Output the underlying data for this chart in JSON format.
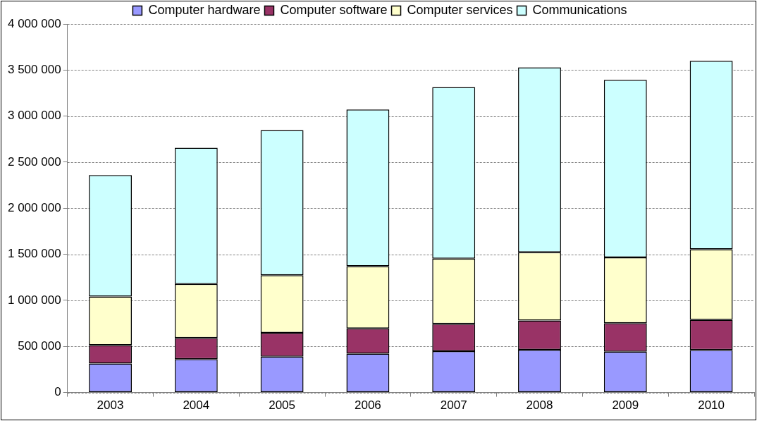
{
  "chart_data": {
    "type": "bar",
    "stacked": true,
    "categories": [
      "2003",
      "2004",
      "2005",
      "2006",
      "2007",
      "2008",
      "2009",
      "2010"
    ],
    "series": [
      {
        "name": "Computer hardware",
        "color": "#9999ff",
        "values": [
          314000,
          362000,
          390000,
          422000,
          448000,
          464000,
          442000,
          462000
        ]
      },
      {
        "name": "Computer software",
        "color": "#993366",
        "values": [
          200000,
          230000,
          258000,
          274000,
          298000,
          318000,
          310000,
          328000
        ]
      },
      {
        "name": "Computer services",
        "color": "#ffffcc",
        "values": [
          528000,
          586000,
          626000,
          674000,
          708000,
          740000,
          714000,
          764000
        ]
      },
      {
        "name": "Communications",
        "color": "#ccffff",
        "values": [
          1318000,
          1478000,
          1574000,
          1702000,
          1861000,
          2008000,
          1928000,
          2046000
        ]
      }
    ],
    "ylim": [
      0,
      4000000
    ],
    "yticks": [
      0,
      {
        "value": 500000,
        "label": "500 000"
      },
      {
        "value": 1000000,
        "label": "1 000 000"
      },
      {
        "value": 1500000,
        "label": "1 500 000"
      },
      {
        "value": 2000000,
        "label": "2 000 000"
      },
      {
        "value": 2500000,
        "label": "2 500 000"
      },
      {
        "value": 3000000,
        "label": "3 000 000"
      },
      {
        "value": 3500000,
        "label": "3 500 000"
      },
      {
        "value": 4000000,
        "label": "4 000 000"
      }
    ],
    "grid": "y",
    "legend": "top"
  }
}
